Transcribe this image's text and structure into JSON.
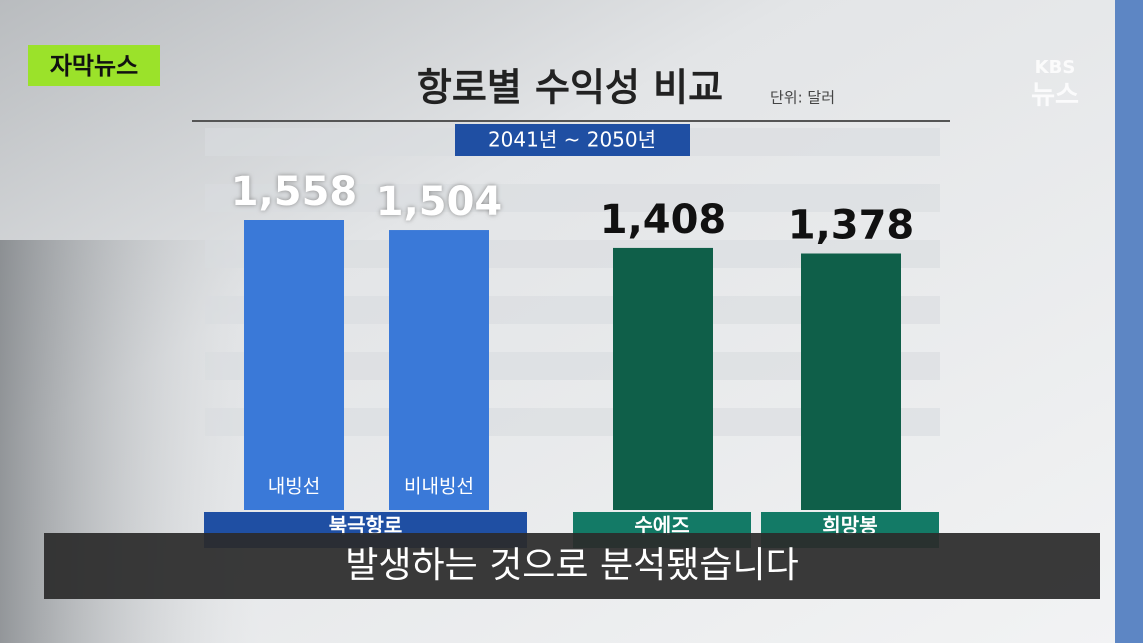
{
  "badge": "자막뉴스",
  "logo": {
    "brand": "KBS",
    "name": "뉴스"
  },
  "caption": "발생하는 것으로 분석됐습니다",
  "chart_data": {
    "type": "bar",
    "title": "항로별 수익성 비교",
    "unit": "단위: 달러",
    "period": "2041년 ~ 2050년",
    "categories": [
      "내빙선",
      "비내빙선",
      null,
      null
    ],
    "category_groups": [
      "북극항로",
      "북극항로",
      "수에즈",
      "희망봉"
    ],
    "group_colors": [
      "#1f4fa3",
      "#1f4fa3",
      "#137a66",
      "#137a66"
    ],
    "values": [
      1558,
      1504,
      1408,
      1378
    ],
    "value_labels": [
      "1,558",
      "1,504",
      "1,408",
      "1,378"
    ],
    "colors": [
      "#3a79d8",
      "#3a79d8",
      "#0f5f49",
      "#0f5f49"
    ],
    "value_label_colors": [
      "#ffffff",
      "#ffffff",
      "#111111",
      "#111111"
    ]
  }
}
